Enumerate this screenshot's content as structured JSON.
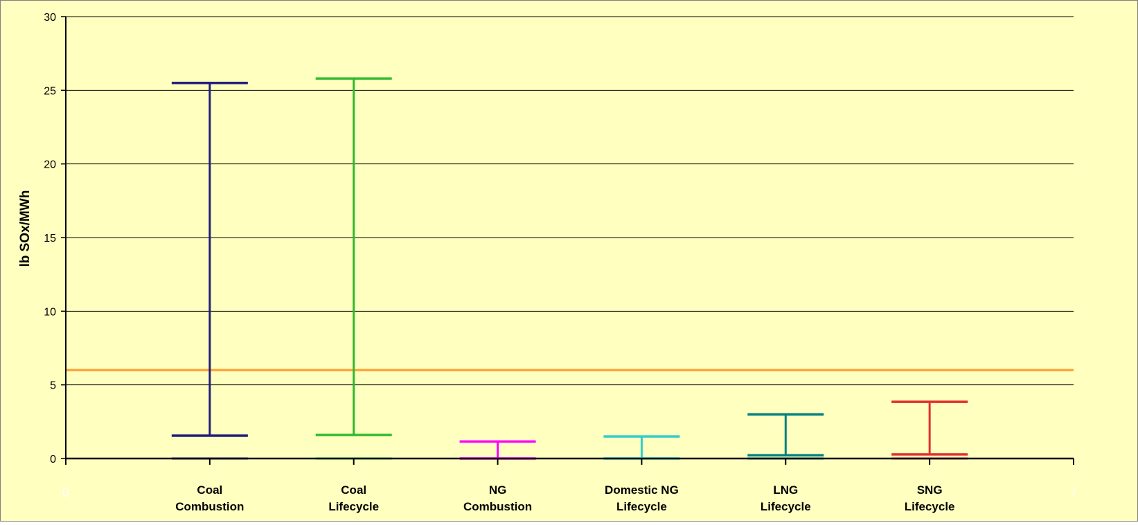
{
  "chart_data": {
    "type": "range",
    "ylabel": "lb SOx/MWh",
    "xlim": [
      0,
      7
    ],
    "ylim": [
      0,
      30
    ],
    "x_ticks": [
      {
        "value": 0,
        "label": "0"
      },
      {
        "value": 7,
        "label": "7"
      }
    ],
    "y_ticks": [
      0,
      5,
      10,
      15,
      20,
      25,
      30
    ],
    "grid": true,
    "background_color": "#FFFFC0",
    "categories": [
      {
        "x": 1,
        "label": [
          "Coal",
          "Combustion"
        ],
        "low": 1.55,
        "high": 25.5,
        "color": "#1F1F7A"
      },
      {
        "x": 2,
        "label": [
          "Coal",
          "Lifecycle"
        ],
        "low": 1.6,
        "high": 25.8,
        "color": "#2EB82E"
      },
      {
        "x": 3,
        "label": [
          "NG",
          "Combustion"
        ],
        "low": 0.0,
        "high": 1.15,
        "color": "#FF00FF"
      },
      {
        "x": 4,
        "label": [
          "Domestic NG",
          "Lifecycle"
        ],
        "low": 0.0,
        "high": 1.5,
        "color": "#33CCCC"
      },
      {
        "x": 5,
        "label": [
          "LNG",
          "Lifecycle"
        ],
        "low": 0.22,
        "high": 3.0,
        "color": "#008080"
      },
      {
        "x": 6,
        "label": [
          "SNG",
          "Lifecycle"
        ],
        "low": 0.28,
        "high": 3.85,
        "color": "#E03030"
      }
    ],
    "reference_line": {
      "y": 6.0,
      "color": "#FFA640"
    }
  }
}
